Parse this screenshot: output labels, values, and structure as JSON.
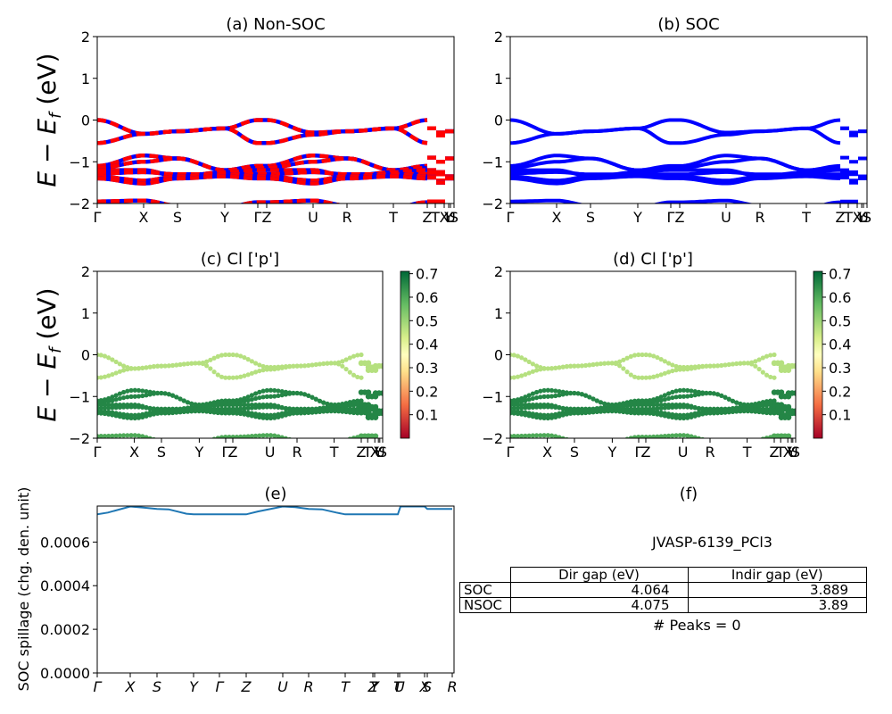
{
  "chart_data": [
    {
      "id": "a",
      "type": "line",
      "title": "(a) Non-SOC",
      "ylabel": "E − E_f (eV)",
      "xlabel": "",
      "ylim": [
        -2,
        2
      ],
      "yticks": [
        -2,
        -1,
        0,
        1,
        2
      ],
      "xticks": [
        {
          "label": "Γ",
          "pos": 0.0
        },
        {
          "label": "X",
          "pos": 0.13
        },
        {
          "label": "S",
          "pos": 0.225
        },
        {
          "label": "Y",
          "pos": 0.3575
        },
        {
          "label": "Γ",
          "pos": 0.45
        },
        {
          "label": "Z",
          "pos": 0.475
        },
        {
          "label": "U",
          "pos": 0.605
        },
        {
          "label": "R",
          "pos": 0.7
        },
        {
          "label": "T",
          "pos": 0.83
        },
        {
          "label": "Z",
          "pos": 0.925
        },
        {
          "label": "T",
          "pos": 0.9475
        },
        {
          "label": "X",
          "pos": 0.9725
        },
        {
          "label": "Y",
          "pos": 0.985
        },
        {
          "label": "U",
          "pos": 0.99
        },
        {
          "label": "S",
          "pos": 1.0
        }
      ],
      "line_colors": [
        "#ff0000",
        "#0000ff"
      ],
      "bands_description": "valence bands between 0 and -0.55 eV, manifold between -0.85 and -1.55 eV, band near -2 eV"
    },
    {
      "id": "b",
      "type": "line",
      "title": "(b) SOC",
      "ylabel": "",
      "ylim": [
        -2,
        2
      ],
      "yticks": [
        -2,
        -1,
        0,
        1,
        2
      ],
      "xticks_same_as": "a",
      "line_colors": [
        "#0000ff"
      ]
    },
    {
      "id": "c",
      "type": "scatter",
      "title": "(c)  Cl ['p']",
      "ylabel": "E − E_f (eV)",
      "ylim": [
        -2,
        2
      ],
      "yticks": [
        -2,
        -1,
        0,
        1,
        2
      ],
      "xticks_same_as": "a",
      "colorbar": {
        "cmap": "RdYlGn",
        "ticks": [
          0.1,
          0.2,
          0.3,
          0.4,
          0.5,
          0.6,
          0.7
        ],
        "range": [
          0.0,
          0.71
        ]
      },
      "projection_values": {
        "upper_bands": 0.47,
        "middle_manifold": 0.66,
        "bottom_band": 0.6
      }
    },
    {
      "id": "d",
      "type": "scatter",
      "title": "(d) Cl ['p']",
      "ylabel": "",
      "ylim": [
        -2,
        2
      ],
      "yticks": [
        -2,
        -1,
        0,
        1,
        2
      ],
      "xticks_same_as": "a",
      "colorbar": {
        "cmap": "RdYlGn",
        "ticks": [
          0.1,
          0.2,
          0.3,
          0.4,
          0.5,
          0.6,
          0.7
        ],
        "range": [
          0.0,
          0.71
        ]
      },
      "projection_values": {
        "upper_bands": 0.47,
        "middle_manifold": 0.66,
        "bottom_band": 0.6
      }
    },
    {
      "id": "e",
      "type": "line",
      "title": "(e)",
      "ylabel": "SOC spillage (chg. den. unit)",
      "ylim": [
        0,
        0.000765
      ],
      "yticks": [
        "0.0000",
        "0.0002",
        "0.0004",
        "0.0006"
      ],
      "ytick_values": [
        0,
        0.0002,
        0.0004,
        0.0006
      ],
      "xticks": [
        {
          "label": "Γ",
          "pos": 0.0
        },
        {
          "label": "X",
          "pos": 0.0925
        },
        {
          "label": "S",
          "pos": 0.1675
        },
        {
          "label": "Y",
          "pos": 0.27
        },
        {
          "label": "Γ",
          "pos": 0.3425
        },
        {
          "label": "Z",
          "pos": 0.4175
        },
        {
          "label": "U",
          "pos": 0.52
        },
        {
          "label": "R",
          "pos": 0.5925
        },
        {
          "label": "T",
          "pos": 0.695
        },
        {
          "label": "Z",
          "pos": 0.7725
        },
        {
          "label": "Y",
          "pos": 0.7775
        },
        {
          "label": "T",
          "pos": 0.8425
        },
        {
          "label": "U",
          "pos": 0.8475
        },
        {
          "label": "X",
          "pos": 0.9175
        },
        {
          "label": "S",
          "pos": 0.925
        },
        {
          "label": "R",
          "pos": 0.995
        }
      ],
      "series": [
        {
          "name": "spillage",
          "color": "#1f77b4",
          "x": [
            0.0,
            0.03,
            0.0925,
            0.13,
            0.1675,
            0.2,
            0.25,
            0.27,
            0.3425,
            0.4175,
            0.45,
            0.52,
            0.555,
            0.5925,
            0.63,
            0.67,
            0.695,
            0.7725,
            0.8425,
            0.85,
            0.8475,
            0.9175,
            0.925,
            0.995
          ],
          "y": [
            0.000727,
            0.000735,
            0.000763,
            0.000758,
            0.000752,
            0.00075,
            0.00073,
            0.000727,
            0.000727,
            0.000727,
            0.00074,
            0.000763,
            0.00076,
            0.000752,
            0.00075,
            0.000735,
            0.000727,
            0.000727,
            0.000727,
            0.000763,
            0.000763,
            0.000763,
            0.000752,
            0.000752
          ]
        }
      ]
    },
    {
      "id": "f",
      "type": "table",
      "title": "(f)",
      "subtitle": "JVASP-6139_PCl3",
      "columns": [
        "",
        "Dir gap (eV)",
        "Indir gap (eV)"
      ],
      "rows": [
        {
          "label": "SOC",
          "dir_gap": "4.064",
          "indir_gap": "3.889"
        },
        {
          "label": "NSOC",
          "dir_gap": "4.075",
          "indir_gap": "3.89"
        }
      ],
      "footer": "# Peaks = 0"
    }
  ],
  "labels": {
    "title_a": "(a) Non-SOC",
    "title_b": "(b) SOC",
    "title_c": "(c)  Cl ['p']",
    "title_d": "(d) Cl ['p']",
    "title_e": "(e)",
    "title_f": "(f)",
    "ylabel_e": "SOC spillage (chg. den. unit)",
    "f_subtitle": "JVASP-6139_PCl3",
    "f_col1": "Dir gap (eV)",
    "f_col2": "Indir gap (eV)",
    "f_row1_label": "SOC",
    "f_row1_dir": "4.064",
    "f_row1_indir": "3.889",
    "f_row2_label": "NSOC",
    "f_row2_dir": "4.075",
    "f_row2_indir": "3.89",
    "f_footer": "# Peaks = 0"
  }
}
